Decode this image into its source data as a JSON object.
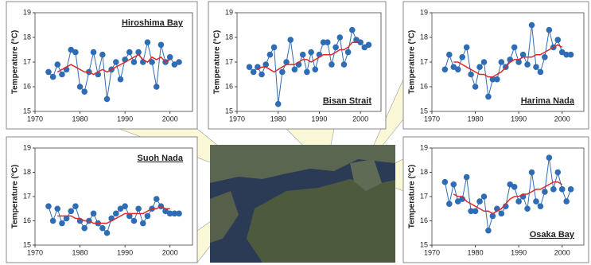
{
  "chart_data": [
    {
      "type": "line",
      "title": "Hiroshima Bay",
      "ylabel": "Temperature (°C)",
      "x": [
        1973,
        1974,
        1975,
        1976,
        1977,
        1978,
        1979,
        1980,
        1981,
        1982,
        1983,
        1984,
        1985,
        1986,
        1987,
        1988,
        1989,
        1990,
        1991,
        1992,
        1993,
        1994,
        1995,
        1996,
        1997,
        1998,
        1999,
        2000,
        2001,
        2002
      ],
      "series": [
        {
          "color": "#2e6db5",
          "markers": true,
          "values": [
            16.6,
            16.4,
            16.9,
            16.5,
            16.7,
            17.5,
            17.4,
            16.0,
            15.8,
            16.6,
            17.4,
            16.5,
            17.3,
            15.5,
            16.7,
            17.0,
            16.3,
            17.1,
            17.4,
            17.0,
            17.4,
            17.0,
            17.8,
            17.0,
            16.0,
            17.7,
            17.0,
            17.2,
            16.9,
            17.0
          ]
        },
        {
          "color": "#e02828",
          "markers": false,
          "values": [
            null,
            null,
            16.6,
            16.7,
            16.8,
            16.9,
            16.8,
            16.7,
            16.6,
            16.6,
            16.5,
            16.6,
            16.7,
            16.6,
            16.7,
            16.8,
            16.9,
            17.0,
            17.1,
            17.2,
            17.3,
            17.1,
            17.0,
            17.2,
            17.1,
            17.2,
            17.0,
            17.1,
            null,
            null
          ]
        }
      ],
      "xlim": [
        1970,
        2005
      ],
      "xticks": [
        1970,
        1980,
        1990,
        2000
      ],
      "ylim": [
        15,
        19
      ],
      "yticks": [
        15,
        16,
        17,
        18,
        19
      ]
    },
    {
      "type": "line",
      "title": "Bisan Strait",
      "ylabel": "Temperature (°C)",
      "x": [
        1973,
        1974,
        1975,
        1976,
        1977,
        1978,
        1979,
        1980,
        1981,
        1982,
        1983,
        1984,
        1985,
        1986,
        1987,
        1988,
        1989,
        1990,
        1991,
        1992,
        1993,
        1994,
        1995,
        1996,
        1997,
        1998,
        1999,
        2000,
        2001,
        2002
      ],
      "series": [
        {
          "color": "#2e6db5",
          "markers": true,
          "values": [
            16.8,
            16.6,
            16.8,
            16.5,
            16.9,
            17.3,
            17.6,
            15.3,
            16.6,
            17.0,
            17.9,
            16.7,
            16.9,
            17.3,
            16.6,
            17.4,
            16.7,
            17.3,
            17.8,
            17.8,
            16.9,
            17.6,
            18.0,
            16.9,
            17.4,
            18.3,
            17.9,
            17.8,
            17.6,
            17.7
          ]
        },
        {
          "color": "#e02828",
          "markers": false,
          "values": [
            null,
            null,
            16.7,
            16.8,
            16.8,
            16.7,
            16.6,
            16.7,
            16.8,
            16.9,
            16.9,
            16.9,
            17.0,
            17.1,
            17.1,
            17.0,
            17.1,
            17.2,
            17.3,
            17.3,
            17.3,
            17.4,
            17.5,
            17.5,
            17.6,
            17.8,
            17.8,
            17.8,
            null,
            null
          ]
        }
      ],
      "xlim": [
        1970,
        2005
      ],
      "xticks": [
        1970,
        1980,
        1990,
        2000
      ],
      "ylim": [
        15,
        19
      ],
      "yticks": [
        15,
        16,
        17,
        18,
        19
      ]
    },
    {
      "type": "line",
      "title": "Harima Nada",
      "ylabel": "Temperature (°C)",
      "x": [
        1973,
        1974,
        1975,
        1976,
        1977,
        1978,
        1979,
        1980,
        1981,
        1982,
        1983,
        1984,
        1985,
        1986,
        1987,
        1988,
        1989,
        1990,
        1991,
        1992,
        1993,
        1994,
        1995,
        1996,
        1997,
        1998,
        1999,
        2000,
        2001,
        2002
      ],
      "series": [
        {
          "color": "#2e6db5",
          "markers": true,
          "values": [
            16.7,
            17.3,
            16.8,
            16.7,
            17.2,
            17.6,
            16.5,
            16.0,
            16.8,
            17.0,
            15.6,
            16.3,
            16.3,
            17.0,
            16.8,
            17.1,
            17.6,
            17.0,
            17.3,
            16.9,
            18.5,
            16.8,
            16.6,
            17.2,
            18.3,
            17.6,
            17.9,
            17.4,
            17.3,
            17.3
          ]
        },
        {
          "color": "#e02828",
          "markers": false,
          "values": [
            null,
            null,
            17.0,
            17.0,
            16.9,
            16.8,
            16.7,
            16.6,
            16.5,
            16.5,
            16.4,
            16.4,
            16.5,
            16.6,
            16.8,
            17.0,
            17.1,
            17.1,
            17.2,
            17.2,
            17.2,
            17.3,
            17.3,
            17.4,
            17.5,
            17.6,
            17.7,
            17.6,
            null,
            null
          ]
        }
      ],
      "xlim": [
        1970,
        2005
      ],
      "xticks": [
        1970,
        1980,
        1990,
        2000
      ],
      "ylim": [
        15,
        19
      ],
      "yticks": [
        15,
        16,
        17,
        18,
        19
      ]
    },
    {
      "type": "line",
      "title": "Suoh Nada",
      "ylabel": "Temperature (°C)",
      "x": [
        1973,
        1974,
        1975,
        1976,
        1977,
        1978,
        1979,
        1980,
        1981,
        1982,
        1983,
        1984,
        1985,
        1986,
        1987,
        1988,
        1989,
        1990,
        1991,
        1992,
        1993,
        1994,
        1995,
        1996,
        1997,
        1998,
        1999,
        2000,
        2001,
        2002
      ],
      "series": [
        {
          "color": "#2e6db5",
          "markers": true,
          "values": [
            16.6,
            16.0,
            16.5,
            15.9,
            16.1,
            16.4,
            16.6,
            16.0,
            15.7,
            16.0,
            16.3,
            15.9,
            15.7,
            15.5,
            16.1,
            16.3,
            16.5,
            16.6,
            16.2,
            16.0,
            16.5,
            15.9,
            16.2,
            16.5,
            16.9,
            16.6,
            16.4,
            16.3,
            16.3,
            16.3
          ]
        },
        {
          "color": "#e02828",
          "markers": false,
          "values": [
            null,
            null,
            16.2,
            16.2,
            16.2,
            16.2,
            16.1,
            16.1,
            16.0,
            16.0,
            15.9,
            15.9,
            15.9,
            15.9,
            16.0,
            16.1,
            16.2,
            16.3,
            16.3,
            16.3,
            16.3,
            16.3,
            16.4,
            16.5,
            16.5,
            16.6,
            16.5,
            16.5,
            null,
            null
          ]
        }
      ],
      "xlim": [
        1970,
        2005
      ],
      "xticks": [
        1970,
        1980,
        1990,
        2000
      ],
      "ylim": [
        15,
        19
      ],
      "yticks": [
        15,
        16,
        17,
        18,
        19
      ]
    },
    {
      "type": "line",
      "title": "Osaka Bay",
      "ylabel": "Temperature (°C)",
      "x": [
        1973,
        1974,
        1975,
        1976,
        1977,
        1978,
        1979,
        1980,
        1981,
        1982,
        1983,
        1984,
        1985,
        1986,
        1987,
        1988,
        1989,
        1990,
        1991,
        1992,
        1993,
        1994,
        1995,
        1996,
        1997,
        1998,
        1999,
        2000,
        2001,
        2002
      ],
      "series": [
        {
          "color": "#2e6db5",
          "markers": true,
          "values": [
            17.6,
            16.7,
            17.5,
            16.8,
            16.9,
            17.8,
            16.4,
            16.4,
            16.8,
            17.0,
            15.6,
            16.2,
            16.5,
            16.3,
            16.6,
            17.5,
            17.4,
            16.8,
            17.0,
            16.5,
            18.0,
            16.8,
            16.6,
            17.2,
            18.6,
            17.3,
            18.0,
            17.3,
            16.8,
            17.3
          ]
        },
        {
          "color": "#e02828",
          "markers": false,
          "values": [
            null,
            null,
            17.1,
            17.0,
            17.0,
            16.8,
            16.7,
            16.6,
            16.5,
            16.4,
            16.4,
            16.3,
            16.4,
            16.5,
            16.7,
            16.9,
            17.0,
            17.0,
            17.1,
            17.1,
            17.2,
            17.3,
            17.3,
            17.4,
            17.5,
            17.6,
            17.6,
            17.5,
            null,
            null
          ]
        }
      ],
      "xlim": [
        1970,
        2005
      ],
      "xticks": [
        1970,
        1980,
        1990,
        2000
      ],
      "ylim": [
        15,
        19
      ],
      "yticks": [
        15,
        16,
        17,
        18,
        19
      ]
    }
  ]
}
